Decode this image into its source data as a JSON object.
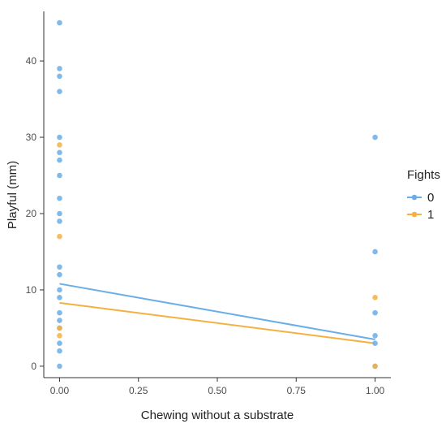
{
  "chart_data": {
    "type": "scatter",
    "xlabel": "Chewing without a substrate",
    "ylabel": "Playful (mm)",
    "xlim": [
      -0.05,
      1.05
    ],
    "ylim": [
      -1.5,
      46.5
    ],
    "x_ticks": [
      0,
      0.25,
      0.5,
      0.75,
      1
    ],
    "x_tick_labels": [
      "0.00",
      "0.25",
      "0.50",
      "0.75",
      "1.00"
    ],
    "y_ticks": [
      0,
      10,
      20,
      30,
      40
    ],
    "y_tick_labels": [
      "0",
      "10",
      "20",
      "30",
      "40"
    ],
    "grid": false,
    "legend": {
      "title": "Fights",
      "position": "right"
    },
    "series": [
      {
        "name": "0",
        "color": "#6aaee8",
        "points": [
          [
            0,
            45
          ],
          [
            0,
            39
          ],
          [
            0,
            38
          ],
          [
            0,
            36
          ],
          [
            0,
            30
          ],
          [
            0,
            28
          ],
          [
            0,
            27
          ],
          [
            0,
            25
          ],
          [
            0,
            22
          ],
          [
            0,
            20
          ],
          [
            0,
            19
          ],
          [
            0,
            13
          ],
          [
            0,
            12
          ],
          [
            0,
            10
          ],
          [
            0,
            9
          ],
          [
            0,
            7
          ],
          [
            0,
            6
          ],
          [
            0,
            5
          ],
          [
            0,
            3
          ],
          [
            0,
            2
          ],
          [
            0,
            0
          ],
          [
            1,
            30
          ],
          [
            1,
            15
          ],
          [
            1,
            7
          ],
          [
            1,
            4
          ],
          [
            1,
            3
          ],
          [
            1,
            0
          ]
        ],
        "trend": [
          [
            0,
            10.8
          ],
          [
            1,
            3.5
          ]
        ]
      },
      {
        "name": "1",
        "color": "#f5b041",
        "points": [
          [
            0,
            29
          ],
          [
            0,
            17
          ],
          [
            0,
            5
          ],
          [
            0,
            4
          ],
          [
            1,
            9
          ],
          [
            1,
            0
          ]
        ],
        "trend": [
          [
            0,
            8.3
          ],
          [
            1,
            3.0
          ]
        ]
      }
    ]
  }
}
